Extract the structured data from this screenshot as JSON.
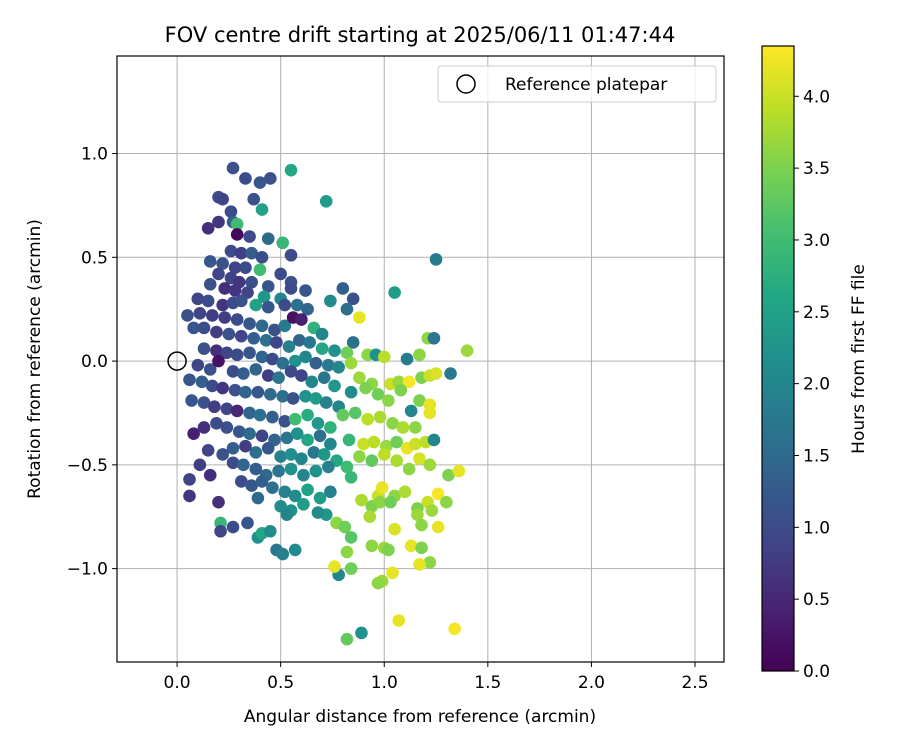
{
  "chart_data": {
    "type": "scatter",
    "title": "FOV centre drift starting at 2025/06/11 01:47:44",
    "xlabel": "Angular distance from reference (arcmin)",
    "ylabel": "Rotation from reference (arcmin)",
    "xlim": [
      -0.29,
      2.64
    ],
    "ylim": [
      -1.45,
      1.47
    ],
    "xticks": [
      0.0,
      0.5,
      1.0,
      1.5,
      2.0,
      2.5
    ],
    "xtick_labels": [
      "0.0",
      "0.5",
      "1.0",
      "1.5",
      "2.0",
      "2.5"
    ],
    "yticks": [
      -1.0,
      -0.5,
      0.0,
      0.5,
      1.0
    ],
    "ytick_labels": [
      "−1.0",
      "−0.5",
      "0.0",
      "0.5",
      "1.0"
    ],
    "grid": true,
    "legend": {
      "placement": "top-right",
      "entries": [
        "Reference platepar"
      ]
    },
    "reference_point": {
      "x": 0.0,
      "y": 0.0,
      "label": "Reference platepar"
    },
    "colorbar": {
      "label": "Hours from first FF file",
      "colormap": "viridis",
      "range": [
        0.0,
        4.35
      ],
      "ticks": [
        0.0,
        0.5,
        1.0,
        1.5,
        2.0,
        2.5,
        3.0,
        3.5,
        4.0
      ],
      "tick_labels": [
        "0.0",
        "0.5",
        "1.0",
        "1.5",
        "2.0",
        "2.5",
        "3.0",
        "3.5",
        "4.0"
      ]
    },
    "points": [
      [
        0.27,
        0.93,
        1.1
      ],
      [
        0.33,
        0.88,
        1.0
      ],
      [
        0.4,
        0.86,
        1.2
      ],
      [
        0.45,
        0.88,
        1.1
      ],
      [
        0.55,
        0.92,
        2.6
      ],
      [
        0.72,
        0.77,
        2.4
      ],
      [
        0.2,
        0.79,
        1.0
      ],
      [
        0.22,
        0.78,
        0.9
      ],
      [
        0.26,
        0.72,
        1.0
      ],
      [
        0.37,
        0.78,
        1.1
      ],
      [
        0.41,
        0.73,
        2.5
      ],
      [
        0.15,
        0.64,
        0.6
      ],
      [
        0.2,
        0.67,
        0.7
      ],
      [
        0.27,
        0.67,
        1.3
      ],
      [
        0.29,
        0.66,
        3.0
      ],
      [
        0.29,
        0.61,
        0.1
      ],
      [
        0.35,
        0.6,
        1.0
      ],
      [
        0.44,
        0.59,
        1.5
      ],
      [
        0.51,
        0.57,
        2.9
      ],
      [
        0.55,
        0.51,
        1.0
      ],
      [
        0.26,
        0.53,
        1.0
      ],
      [
        0.31,
        0.52,
        0.8
      ],
      [
        0.36,
        0.52,
        1.3
      ],
      [
        0.41,
        0.5,
        1.0
      ],
      [
        1.25,
        0.49,
        1.8
      ],
      [
        0.16,
        0.48,
        1.2
      ],
      [
        0.22,
        0.47,
        1.1
      ],
      [
        0.28,
        0.45,
        0.9
      ],
      [
        0.33,
        0.45,
        1.0
      ],
      [
        0.4,
        0.44,
        3.0
      ],
      [
        0.5,
        0.42,
        1.0
      ],
      [
        0.55,
        0.38,
        1.1
      ],
      [
        0.2,
        0.42,
        0.9
      ],
      [
        0.26,
        0.4,
        0.9
      ],
      [
        0.3,
        0.38,
        0.7
      ],
      [
        0.36,
        0.38,
        1.1
      ],
      [
        0.44,
        0.36,
        1.2
      ],
      [
        0.55,
        0.35,
        1.0
      ],
      [
        0.16,
        0.37,
        1.1
      ],
      [
        0.23,
        0.35,
        0.6
      ],
      [
        0.28,
        0.34,
        0.7
      ],
      [
        0.34,
        0.33,
        0.9
      ],
      [
        0.42,
        0.31,
        2.3
      ],
      [
        0.5,
        0.3,
        2.0
      ],
      [
        0.62,
        0.34,
        1.2
      ],
      [
        0.8,
        0.35,
        1.3
      ],
      [
        0.85,
        0.3,
        1.1
      ],
      [
        1.05,
        0.33,
        2.4
      ],
      [
        0.1,
        0.3,
        0.9
      ],
      [
        0.15,
        0.29,
        1.0
      ],
      [
        0.22,
        0.27,
        0.7
      ],
      [
        0.27,
        0.28,
        1.0
      ],
      [
        0.31,
        0.29,
        1.1
      ],
      [
        0.38,
        0.27,
        2.5
      ],
      [
        0.44,
        0.26,
        1.2
      ],
      [
        0.52,
        0.27,
        1.0
      ],
      [
        0.58,
        0.27,
        1.6
      ],
      [
        0.63,
        0.25,
        1.4
      ],
      [
        0.74,
        0.29,
        2.1
      ],
      [
        0.82,
        0.25,
        1.6
      ],
      [
        0.88,
        0.21,
        4.2
      ],
      [
        0.05,
        0.22,
        1.1
      ],
      [
        0.11,
        0.23,
        0.9
      ],
      [
        0.17,
        0.22,
        0.8
      ],
      [
        0.23,
        0.21,
        0.8
      ],
      [
        0.29,
        0.2,
        1.0
      ],
      [
        0.35,
        0.18,
        1.2
      ],
      [
        0.41,
        0.17,
        1.5
      ],
      [
        0.47,
        0.15,
        1.1
      ],
      [
        0.52,
        0.17,
        1.8
      ],
      [
        0.56,
        0.21,
        0.2
      ],
      [
        0.6,
        0.2,
        0.4
      ],
      [
        0.66,
        0.16,
        2.8
      ],
      [
        0.7,
        0.13,
        2.0
      ],
      [
        0.85,
        0.09,
        1.6
      ],
      [
        1.21,
        0.11,
        3.6
      ],
      [
        1.24,
        0.11,
        1.7
      ],
      [
        0.08,
        0.16,
        1.2
      ],
      [
        0.13,
        0.16,
        1.0
      ],
      [
        0.19,
        0.14,
        0.8
      ],
      [
        0.25,
        0.13,
        1.1
      ],
      [
        0.31,
        0.12,
        0.9
      ],
      [
        0.37,
        0.11,
        1.3
      ],
      [
        0.43,
        0.1,
        1.6
      ],
      [
        0.48,
        0.09,
        0.9
      ],
      [
        0.54,
        0.07,
        1.9
      ],
      [
        0.59,
        0.1,
        1.4
      ],
      [
        0.64,
        0.09,
        1.7
      ],
      [
        0.7,
        0.06,
        2.6
      ],
      [
        0.76,
        0.05,
        2.2
      ],
      [
        0.82,
        0.04,
        3.4
      ],
      [
        0.92,
        0.03,
        3.6
      ],
      [
        0.96,
        0.03,
        2.2
      ],
      [
        1.0,
        0.02,
        3.9
      ],
      [
        1.11,
        0.01,
        1.8
      ],
      [
        1.17,
        0.03,
        3.6
      ],
      [
        1.4,
        0.05,
        3.7
      ],
      [
        0.13,
        0.06,
        1.1
      ],
      [
        0.19,
        0.05,
        0.6
      ],
      [
        0.24,
        0.04,
        0.9
      ],
      [
        0.29,
        0.03,
        1.0
      ],
      [
        0.35,
        0.04,
        1.2
      ],
      [
        0.41,
        0.02,
        1.4
      ],
      [
        0.46,
        0.01,
        1.0
      ],
      [
        0.51,
        -0.01,
        1.6
      ],
      [
        0.57,
        0.0,
        2.2
      ],
      [
        0.62,
        0.02,
        2.0
      ],
      [
        0.67,
        -0.01,
        1.3
      ],
      [
        0.73,
        -0.02,
        1.8
      ],
      [
        0.78,
        -0.03,
        2.0
      ],
      [
        0.84,
        -0.01,
        3.7
      ],
      [
        0.1,
        -0.02,
        0.9
      ],
      [
        0.16,
        -0.04,
        1.1
      ],
      [
        0.2,
        0.0,
        0.2
      ],
      [
        0.27,
        -0.05,
        1.0
      ],
      [
        0.32,
        -0.06,
        1.3
      ],
      [
        0.38,
        -0.04,
        1.4
      ],
      [
        0.44,
        -0.07,
        0.8
      ],
      [
        0.49,
        -0.08,
        1.7
      ],
      [
        0.55,
        -0.05,
        1.0
      ],
      [
        0.6,
        -0.07,
        0.9
      ],
      [
        0.65,
        -0.1,
        2.0
      ],
      [
        0.71,
        -0.08,
        1.7
      ],
      [
        0.76,
        -0.12,
        2.3
      ],
      [
        0.88,
        -0.08,
        3.7
      ],
      [
        0.94,
        -0.11,
        3.6
      ],
      [
        1.03,
        -0.11,
        4.0
      ],
      [
        1.07,
        -0.1,
        3.7
      ],
      [
        1.12,
        -0.1,
        4.3
      ],
      [
        1.18,
        -0.08,
        3.5
      ],
      [
        1.22,
        -0.07,
        4.0
      ],
      [
        1.25,
        -0.06,
        4.1
      ],
      [
        1.32,
        -0.06,
        1.8
      ],
      [
        0.06,
        -0.09,
        1.2
      ],
      [
        0.12,
        -0.1,
        1.3
      ],
      [
        0.17,
        -0.12,
        1.0
      ],
      [
        0.22,
        -0.13,
        0.7
      ],
      [
        0.28,
        -0.14,
        1.1
      ],
      [
        0.33,
        -0.15,
        1.4
      ],
      [
        0.39,
        -0.15,
        1.2
      ],
      [
        0.45,
        -0.16,
        1.5
      ],
      [
        0.51,
        -0.17,
        1.6
      ],
      [
        0.56,
        -0.18,
        1.1
      ],
      [
        0.62,
        -0.17,
        2.2
      ],
      [
        0.67,
        -0.18,
        2.4
      ],
      [
        0.72,
        -0.2,
        1.9
      ],
      [
        0.78,
        -0.22,
        2.0
      ],
      [
        0.84,
        -0.15,
        2.1
      ],
      [
        0.91,
        -0.13,
        3.5
      ],
      [
        0.97,
        -0.16,
        3.4
      ],
      [
        1.02,
        -0.19,
        3.6
      ],
      [
        1.08,
        -0.14,
        3.5
      ],
      [
        1.13,
        -0.24,
        2.0
      ],
      [
        1.17,
        -0.19,
        3.5
      ],
      [
        1.22,
        -0.21,
        4.2
      ],
      [
        0.07,
        -0.19,
        1.2
      ],
      [
        0.13,
        -0.2,
        1.1
      ],
      [
        0.18,
        -0.22,
        0.8
      ],
      [
        0.24,
        -0.23,
        0.9
      ],
      [
        0.29,
        -0.24,
        0.5
      ],
      [
        0.35,
        -0.25,
        1.4
      ],
      [
        0.4,
        -0.26,
        1.6
      ],
      [
        0.46,
        -0.27,
        1.3
      ],
      [
        0.52,
        -0.29,
        1.1
      ],
      [
        0.57,
        -0.28,
        3.0
      ],
      [
        0.63,
        -0.26,
        2.7
      ],
      [
        0.68,
        -0.3,
        2.3
      ],
      [
        0.74,
        -0.32,
        2.8
      ],
      [
        0.8,
        -0.26,
        3.3
      ],
      [
        0.86,
        -0.25,
        3.2
      ],
      [
        0.92,
        -0.28,
        3.9
      ],
      [
        0.98,
        -0.27,
        3.8
      ],
      [
        1.04,
        -0.3,
        3.6
      ],
      [
        1.09,
        -0.32,
        3.8
      ],
      [
        1.15,
        -0.32,
        3.6
      ],
      [
        1.22,
        -0.25,
        4.2
      ],
      [
        0.08,
        -0.35,
        0.4
      ],
      [
        0.13,
        -0.32,
        0.6
      ],
      [
        0.19,
        -0.3,
        1.0
      ],
      [
        0.24,
        -0.32,
        1.1
      ],
      [
        0.3,
        -0.34,
        1.2
      ],
      [
        0.35,
        -0.35,
        1.5
      ],
      [
        0.41,
        -0.36,
        0.9
      ],
      [
        0.47,
        -0.38,
        1.4
      ],
      [
        0.53,
        -0.37,
        1.7
      ],
      [
        0.58,
        -0.35,
        2.2
      ],
      [
        0.63,
        -0.38,
        2.6
      ],
      [
        0.69,
        -0.36,
        1.6
      ],
      [
        0.74,
        -0.4,
        2.0
      ],
      [
        0.83,
        -0.38,
        2.9
      ],
      [
        0.9,
        -0.4,
        4.0
      ],
      [
        0.95,
        -0.39,
        3.9
      ],
      [
        1.01,
        -0.41,
        3.7
      ],
      [
        1.06,
        -0.39,
        3.4
      ],
      [
        1.11,
        -0.42,
        4.2
      ],
      [
        1.15,
        -0.4,
        4.0
      ],
      [
        1.2,
        -0.39,
        3.9
      ],
      [
        1.24,
        -0.38,
        2.0
      ],
      [
        0.15,
        -0.43,
        0.9
      ],
      [
        0.22,
        -0.45,
        1.1
      ],
      [
        0.27,
        -0.42,
        1.3
      ],
      [
        0.33,
        -0.41,
        0.8
      ],
      [
        0.38,
        -0.44,
        1.6
      ],
      [
        0.44,
        -0.42,
        1.2
      ],
      [
        0.5,
        -0.46,
        1.9
      ],
      [
        0.55,
        -0.45,
        2.2
      ],
      [
        0.6,
        -0.47,
        2.0
      ],
      [
        0.66,
        -0.44,
        1.7
      ],
      [
        0.71,
        -0.45,
        2.3
      ],
      [
        0.77,
        -0.48,
        2.6
      ],
      [
        0.82,
        -0.51,
        3.0
      ],
      [
        0.88,
        -0.46,
        3.6
      ],
      [
        0.94,
        -0.48,
        3.3
      ],
      [
        1.0,
        -0.45,
        3.9
      ],
      [
        1.06,
        -0.48,
        3.8
      ],
      [
        1.12,
        -0.52,
        3.6
      ],
      [
        1.17,
        -0.47,
        4.1
      ],
      [
        1.22,
        -0.5,
        3.7
      ],
      [
        1.31,
        -0.55,
        3.5
      ],
      [
        1.36,
        -0.53,
        4.2
      ],
      [
        0.11,
        -0.5,
        0.8
      ],
      [
        0.16,
        -0.55,
        0.6
      ],
      [
        0.27,
        -0.49,
        1.0
      ],
      [
        0.32,
        -0.5,
        1.4
      ],
      [
        0.38,
        -0.52,
        1.3
      ],
      [
        0.43,
        -0.55,
        1.5
      ],
      [
        0.49,
        -0.53,
        1.7
      ],
      [
        0.55,
        -0.52,
        2.2
      ],
      [
        0.61,
        -0.55,
        2.0
      ],
      [
        0.67,
        -0.53,
        2.2
      ],
      [
        0.73,
        -0.51,
        1.9
      ],
      [
        0.84,
        -0.56,
        2.9
      ],
      [
        0.97,
        -0.65,
        4.0
      ],
      [
        0.99,
        -0.61,
        4.2
      ],
      [
        1.05,
        -0.65,
        3.6
      ],
      [
        1.1,
        -0.63,
        3.8
      ],
      [
        1.21,
        -0.68,
        4.0
      ],
      [
        1.26,
        -0.64,
        4.3
      ],
      [
        1.3,
        -0.68,
        3.6
      ],
      [
        0.31,
        -0.58,
        1.0
      ],
      [
        0.36,
        -0.6,
        1.2
      ],
      [
        0.41,
        -0.58,
        1.3
      ],
      [
        0.46,
        -0.61,
        1.6
      ],
      [
        0.52,
        -0.63,
        1.9
      ],
      [
        0.57,
        -0.65,
        2.1
      ],
      [
        0.63,
        -0.62,
        2.5
      ],
      [
        0.69,
        -0.66,
        2.4
      ],
      [
        0.74,
        -0.63,
        1.9
      ],
      [
        0.89,
        -0.67,
        3.8
      ],
      [
        0.94,
        -0.7,
        3.5
      ],
      [
        0.98,
        -0.68,
        3.6
      ],
      [
        1.03,
        -0.68,
        3.4
      ],
      [
        1.16,
        -0.71,
        3.5
      ],
      [
        1.23,
        -0.72,
        3.7
      ],
      [
        0.06,
        -0.57,
        0.9
      ],
      [
        0.06,
        -0.65,
        0.7
      ],
      [
        0.2,
        -0.68,
        0.6
      ],
      [
        0.39,
        -0.66,
        1.5
      ],
      [
        0.5,
        -0.7,
        2.1
      ],
      [
        0.55,
        -0.72,
        2.2
      ],
      [
        0.61,
        -0.69,
        2.4
      ],
      [
        0.72,
        -0.74,
        2.3
      ],
      [
        0.77,
        -0.78,
        3.6
      ],
      [
        0.81,
        -0.8,
        3.4
      ],
      [
        0.84,
        -0.85,
        3.2
      ],
      [
        0.93,
        -0.75,
        3.8
      ],
      [
        1.05,
        -0.81,
        4.1
      ],
      [
        1.16,
        -0.74,
        3.7
      ],
      [
        1.18,
        -0.79,
        3.6
      ],
      [
        1.26,
        -0.8,
        4.2
      ],
      [
        0.21,
        -0.78,
        2.9
      ],
      [
        0.27,
        -0.8,
        1.0
      ],
      [
        0.34,
        -0.78,
        1.2
      ],
      [
        0.39,
        -0.85,
        2.2
      ],
      [
        0.41,
        -0.83,
        2.6
      ],
      [
        0.45,
        -0.82,
        2.1
      ],
      [
        0.53,
        -0.74,
        2.0
      ],
      [
        0.68,
        -0.73,
        2.1
      ],
      [
        0.82,
        -0.92,
        3.6
      ],
      [
        0.94,
        -0.89,
        3.6
      ],
      [
        1.0,
        -0.9,
        3.7
      ],
      [
        1.13,
        -0.89,
        4.2
      ],
      [
        1.18,
        -0.9,
        3.5
      ],
      [
        1.22,
        -0.97,
        3.6
      ],
      [
        0.21,
        -0.82,
        0.9
      ],
      [
        0.48,
        -0.91,
        1.7
      ],
      [
        0.57,
        -0.91,
        2.1
      ],
      [
        0.51,
        -0.93,
        1.9
      ],
      [
        0.84,
        -1.0,
        3.4
      ],
      [
        0.99,
        -1.06,
        3.7
      ],
      [
        1.04,
        -1.02,
        4.2
      ],
      [
        1.17,
        -0.98,
        4.2
      ],
      [
        0.78,
        -1.03,
        2.0
      ],
      [
        0.97,
        -1.07,
        3.6
      ],
      [
        0.82,
        -1.34,
        3.3
      ],
      [
        0.89,
        -1.31,
        2.2
      ],
      [
        1.07,
        -1.25,
        4.2
      ],
      [
        1.34,
        -1.29,
        4.3
      ],
      [
        0.76,
        -0.99,
        4.2
      ],
      [
        1.02,
        -0.91,
        3.5
      ]
    ]
  }
}
